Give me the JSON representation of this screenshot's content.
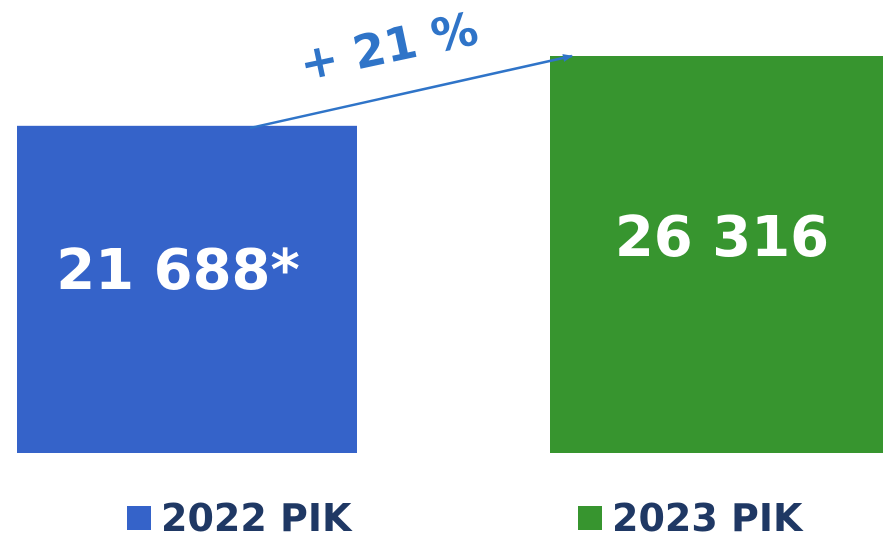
{
  "chart_data": {
    "type": "bar",
    "categories": [
      "2022 PIK",
      "2023 PIK"
    ],
    "values": [
      21688,
      26316
    ],
    "value_labels": [
      "21 688*",
      "26 316"
    ],
    "colors": [
      "#3563c9",
      "#37952f"
    ],
    "change_label": "+ 21 %",
    "change_color": "#2f74c8",
    "legend": [
      "2022 PIK",
      "2023 PIK"
    ],
    "legend_position": "bottom",
    "ylim": [
      0,
      26316
    ],
    "grid": false
  }
}
